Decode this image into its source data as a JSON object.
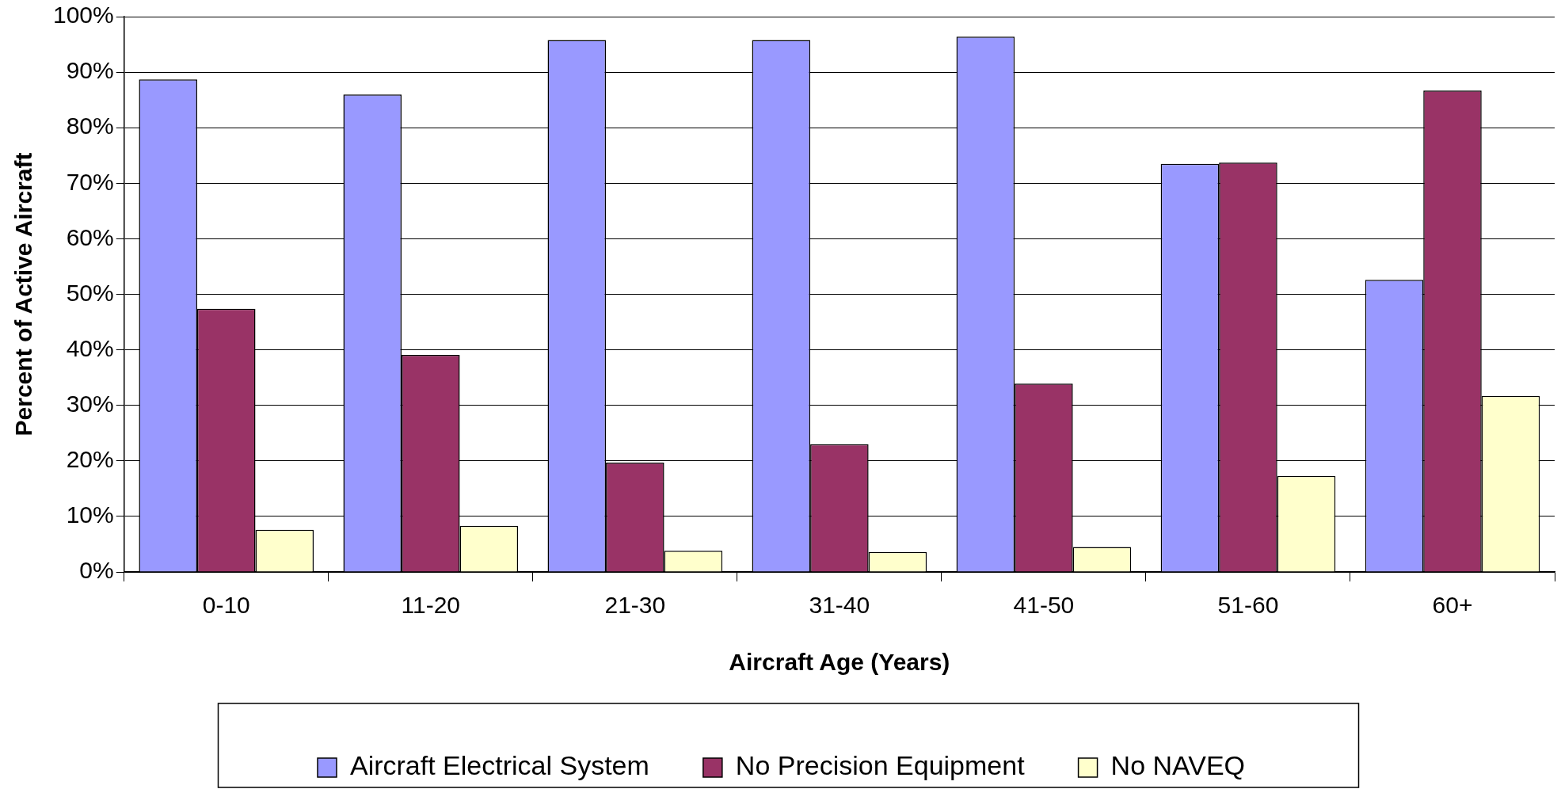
{
  "chart_data": {
    "type": "bar",
    "xlabel": "Aircraft Age (Years)",
    "ylabel": "Percent of Active Aircraft",
    "categories": [
      "0-10",
      "11-20",
      "21-30",
      "31-40",
      "41-50",
      "51-60",
      "60+"
    ],
    "series": [
      {
        "name": "Aircraft Electrical System",
        "color": "#9999ff",
        "values": [
          88.7,
          86.0,
          95.8,
          95.8,
          96.4,
          73.5,
          52.6
        ]
      },
      {
        "name": "No Precision Equipment",
        "color": "#993366",
        "values": [
          47.4,
          39.1,
          19.7,
          23.0,
          33.9,
          73.7,
          86.7
        ]
      },
      {
        "name": "No NAVEQ",
        "color": "#ffffcc",
        "values": [
          7.6,
          8.3,
          3.8,
          3.6,
          4.5,
          17.3,
          31.7
        ]
      }
    ],
    "ylim": [
      0,
      100
    ],
    "yticks": [
      {
        "value": 0,
        "label": "0%"
      },
      {
        "value": 10,
        "label": "10%"
      },
      {
        "value": 20,
        "label": "20%"
      },
      {
        "value": 30,
        "label": "30%"
      },
      {
        "value": 40,
        "label": "40%"
      },
      {
        "value": 50,
        "label": "50%"
      },
      {
        "value": 60,
        "label": "60%"
      },
      {
        "value": 70,
        "label": "70%"
      },
      {
        "value": 80,
        "label": "80%"
      },
      {
        "value": 90,
        "label": "90%"
      },
      {
        "value": 100,
        "label": "100%"
      }
    ],
    "grid": "y",
    "legend": "bottom"
  }
}
